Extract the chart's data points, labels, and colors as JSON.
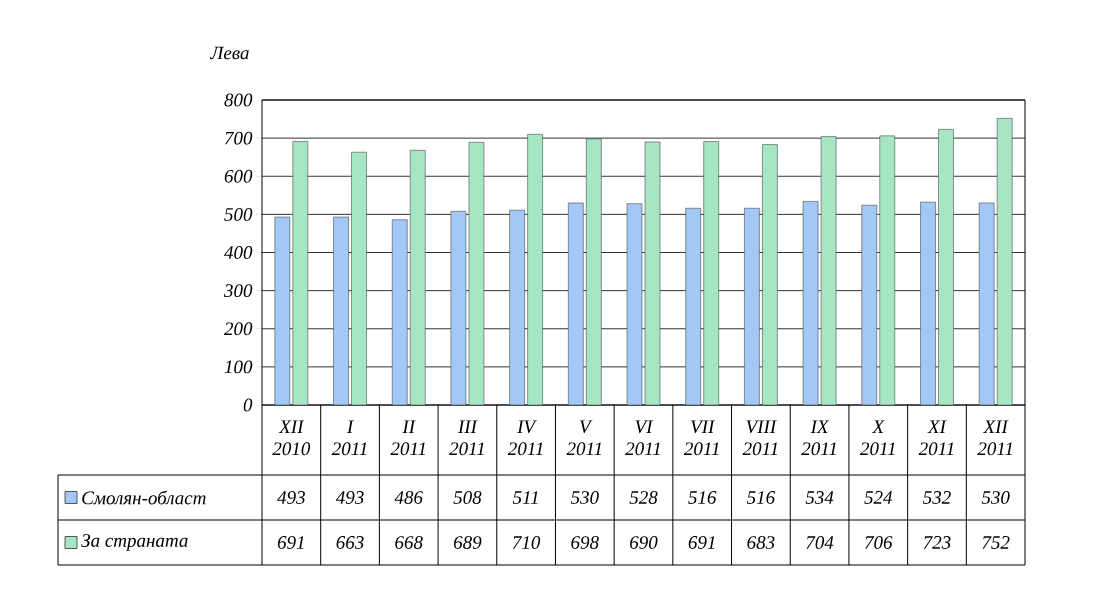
{
  "chart_data": {
    "type": "bar",
    "ylabel": "Лева",
    "categories": [
      "XII 2010",
      "I 2011",
      "II 2011",
      "III 2011",
      "IV 2011",
      "V 2011",
      "VI 2011",
      "VII 2011",
      "VIII 2011",
      "IX 2011",
      "X 2011",
      "XI 2011",
      "XII 2011"
    ],
    "series": [
      {
        "name": "Смолян-област",
        "color": "#a3c8f5",
        "values": [
          493,
          493,
          486,
          508,
          511,
          530,
          528,
          516,
          516,
          534,
          524,
          532,
          530
        ]
      },
      {
        "name": "За страната",
        "color": "#a6e6c3",
        "values": [
          691,
          663,
          668,
          689,
          710,
          698,
          690,
          691,
          683,
          704,
          706,
          723,
          752
        ]
      }
    ],
    "ylim": [
      0,
      800
    ],
    "yticks": [
      0,
      100,
      200,
      300,
      400,
      500,
      600,
      700,
      800
    ],
    "grid": "y",
    "legend": "bottom",
    "data_labels": true
  }
}
